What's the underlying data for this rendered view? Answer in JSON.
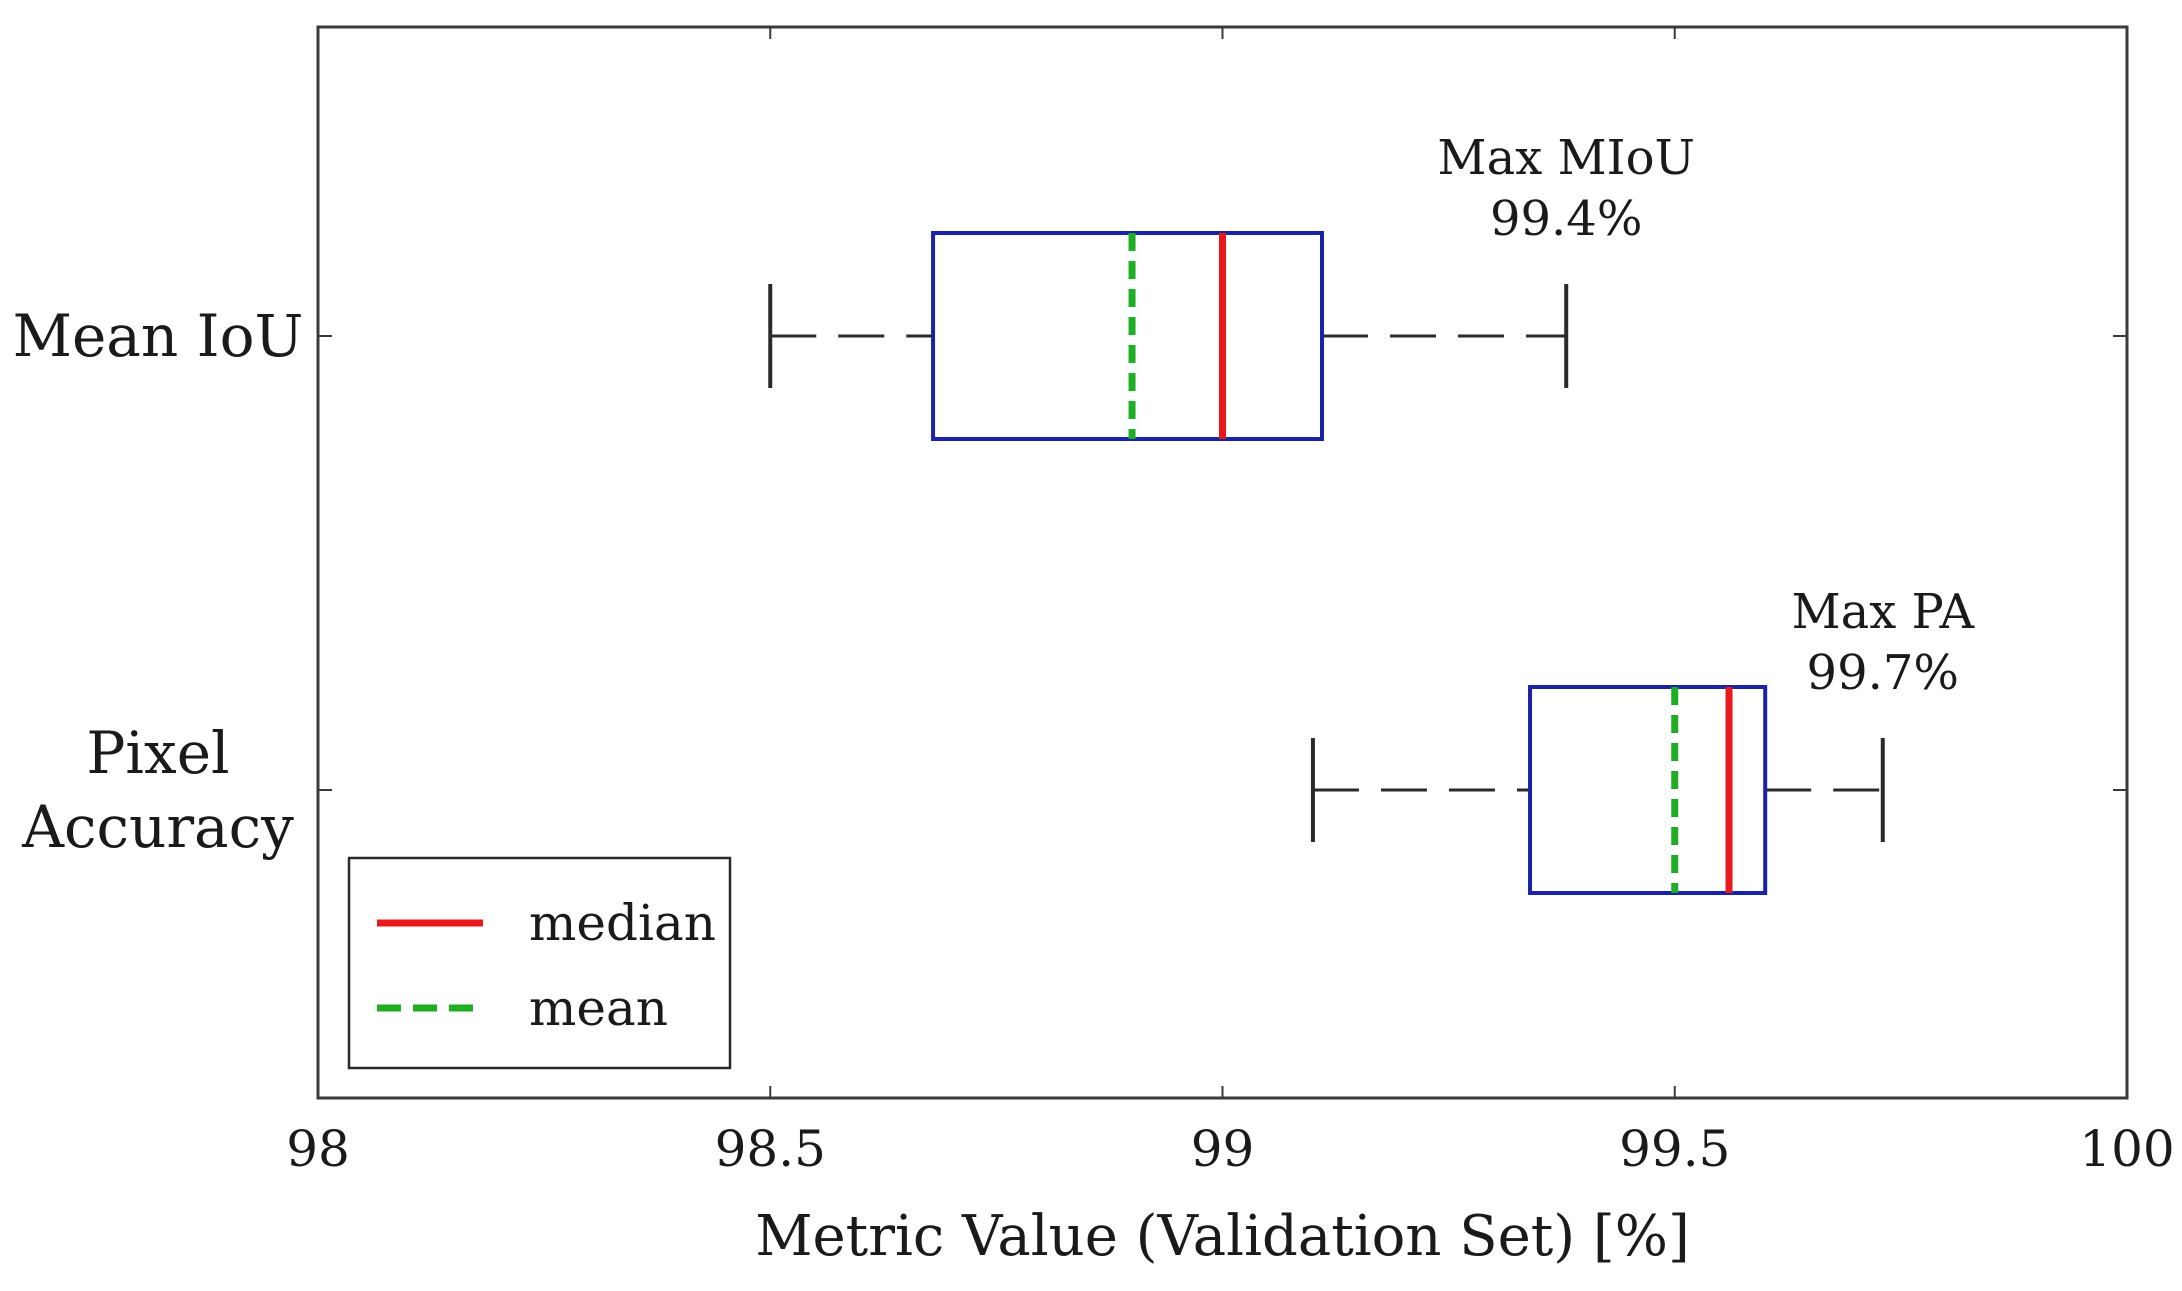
{
  "chart_data": {
    "type": "boxplot",
    "orientation": "horizontal",
    "xlabel": "Metric Value (Validation Set) [%]",
    "ylabel": "",
    "xlim": [
      98,
      100
    ],
    "xticks": [
      98,
      98.5,
      99,
      99.5,
      100
    ],
    "x_tick_labels": [
      "98",
      "98.5",
      "99",
      "99.5",
      "100"
    ],
    "grid": false,
    "categories": [
      {
        "label_lines": [
          "Mean IoU"
        ],
        "whisker_low": 98.5,
        "q1": 98.68,
        "median": 99.0,
        "mean": 98.9,
        "q3": 99.11,
        "whisker_high": 99.38,
        "annotation": [
          "Max MIoU",
          "99.4%"
        ]
      },
      {
        "label_lines": [
          "Pixel",
          "Accuracy"
        ],
        "whisker_low": 99.1,
        "q1": 99.34,
        "median": 99.56,
        "mean": 99.5,
        "q3": 99.6,
        "whisker_high": 99.73,
        "annotation": [
          "Max PA",
          "99.7%"
        ]
      }
    ],
    "legend": {
      "position": "lower-left",
      "entries": [
        {
          "label": "median",
          "color": "#e8191b",
          "style": "solid"
        },
        {
          "label": "mean",
          "color": "#1fae23",
          "style": "dashed"
        }
      ]
    },
    "colors": {
      "box": "#1a23a6",
      "whisker": "#2a2a2a",
      "median": "#e8191b",
      "mean": "#1fae23",
      "frame": "#3a3a3a"
    }
  }
}
